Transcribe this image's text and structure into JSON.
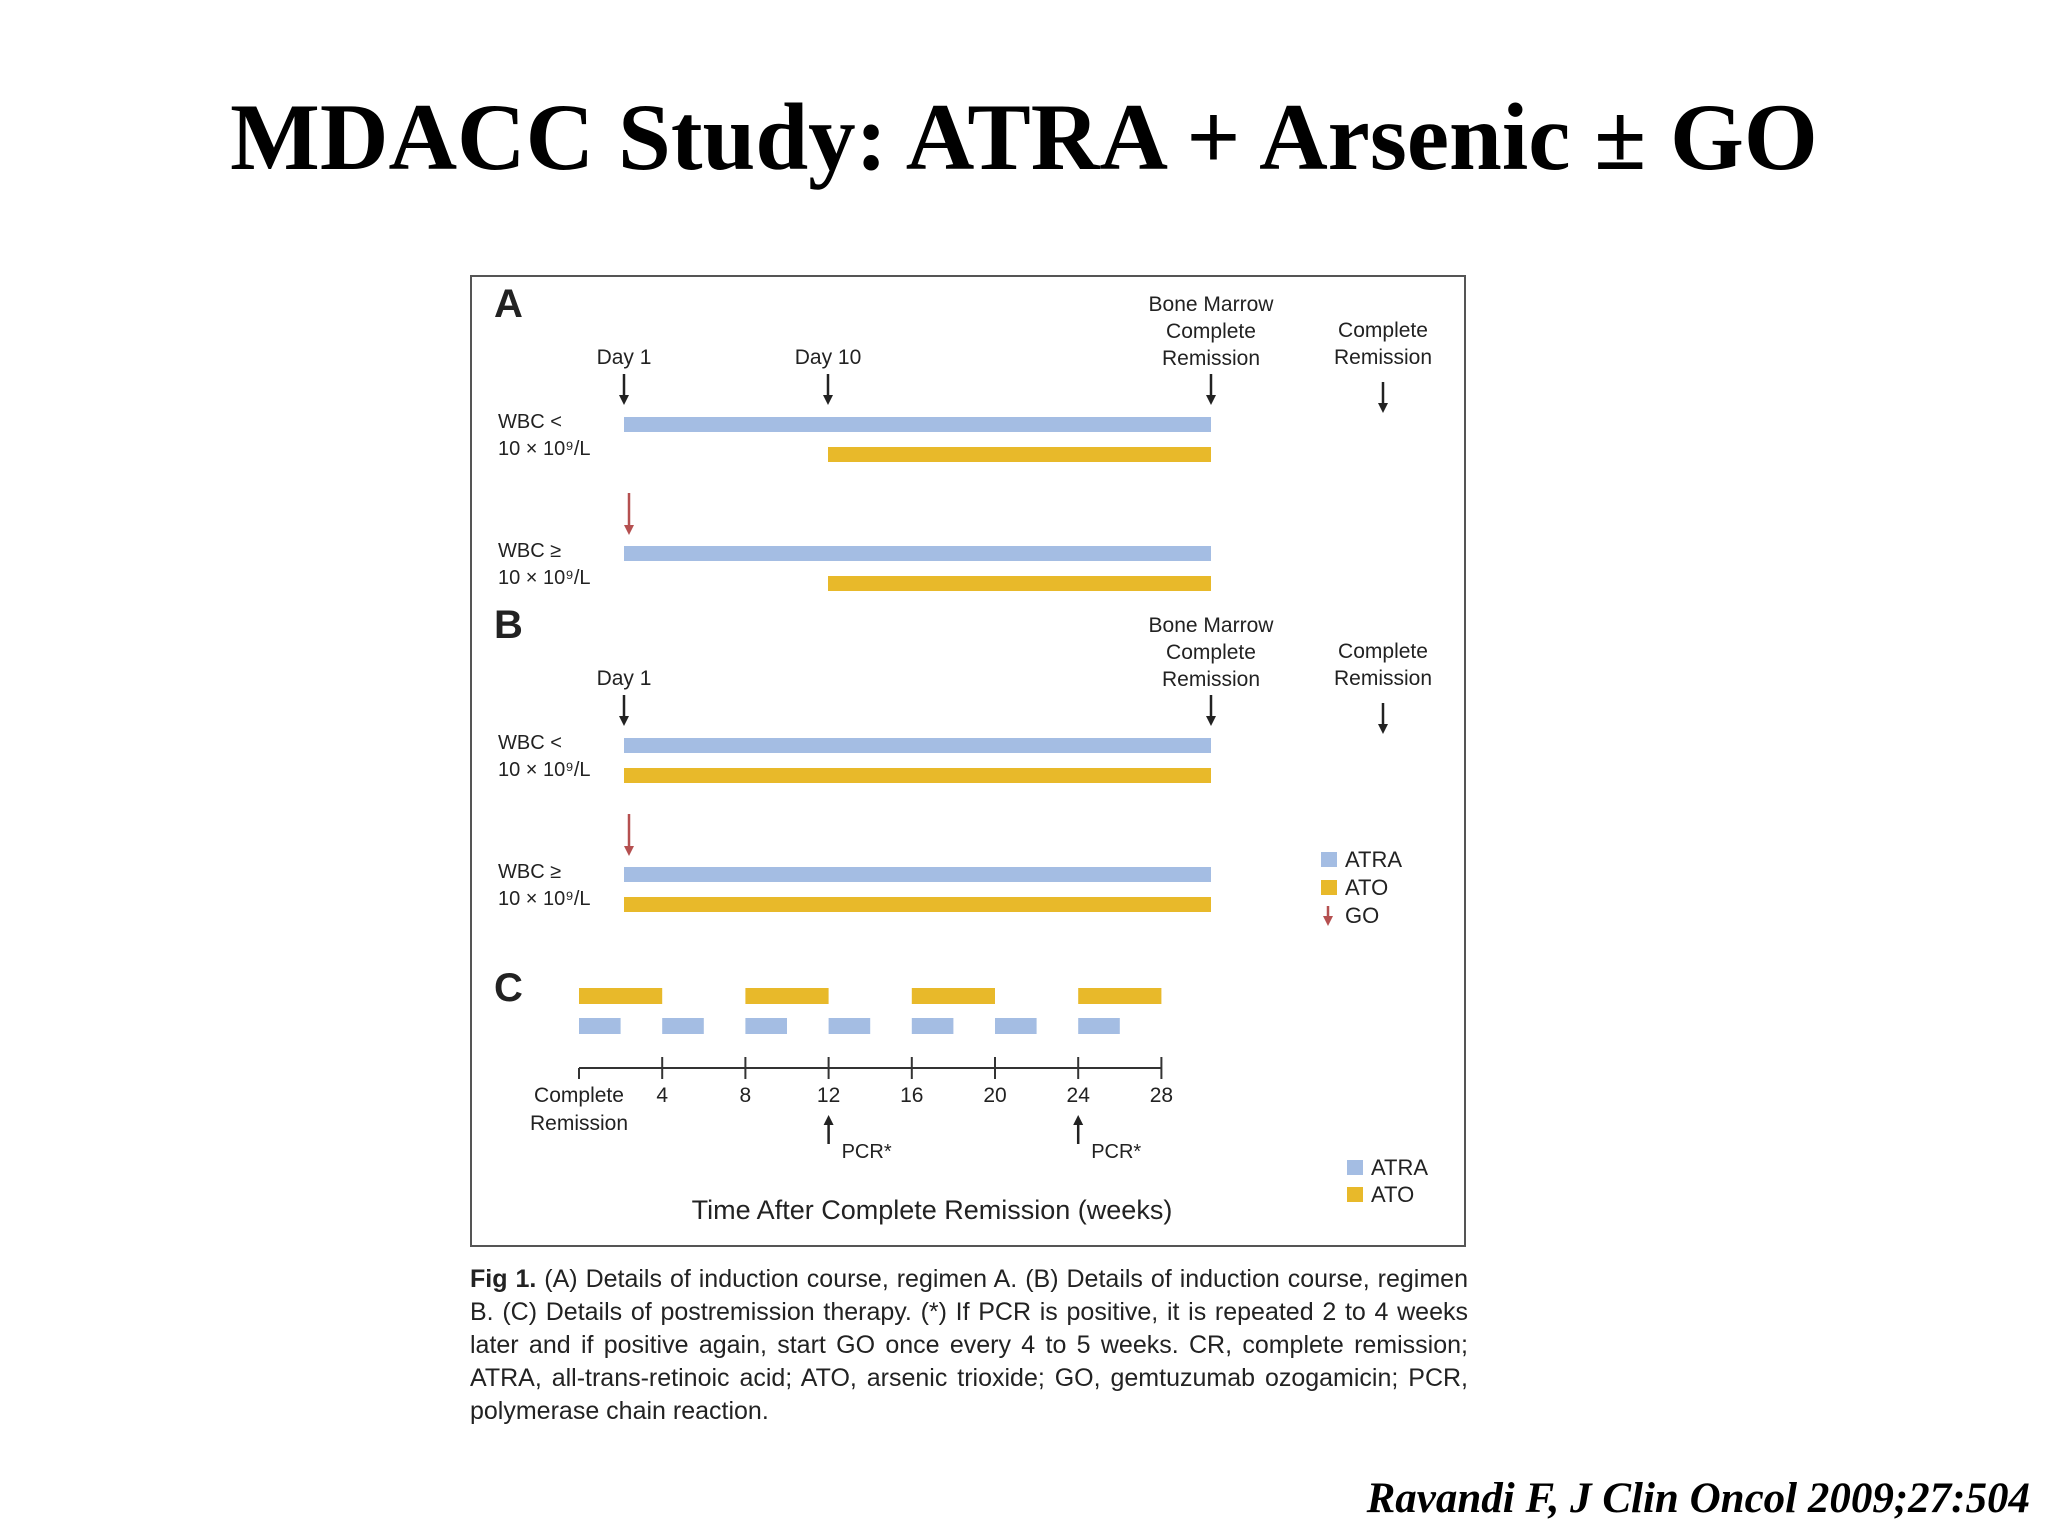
{
  "slide": {
    "title": "MDACC Study: ATRA + Arsenic ± GO",
    "citation": "Ravandi F, J Clin Oncol 2009;27:504"
  },
  "colors": {
    "atra": "#a4bde3",
    "ato": "#e8b92a",
    "go": "#b55050",
    "arrow": "#222222"
  },
  "figure": {
    "panel_a": {
      "letter": "A",
      "day1_label": "Day 1",
      "day10_label": "Day 10",
      "bmcr_label": [
        "Bone Marrow",
        "Complete",
        "Remission"
      ],
      "cr_label": [
        "Complete",
        "Remission"
      ],
      "rows": [
        {
          "label": [
            "WBC <",
            "10 × 10⁹/L"
          ],
          "go": false,
          "atra_start_day": 1,
          "ato_start_day": 10
        },
        {
          "label": [
            "WBC ≥",
            "10 × 10⁹/L"
          ],
          "go": true,
          "atra_start_day": 1,
          "ato_start_day": 10
        }
      ]
    },
    "panel_b": {
      "letter": "B",
      "day1_label": "Day 1",
      "bmcr_label": [
        "Bone Marrow",
        "Complete",
        "Remission"
      ],
      "cr_label": [
        "Complete",
        "Remission"
      ],
      "rows": [
        {
          "label": [
            "WBC <",
            "10 × 10⁹/L"
          ],
          "go": false,
          "atra_start_day": 1,
          "ato_start_day": 1
        },
        {
          "label": [
            "WBC ≥",
            "10 × 10⁹/L"
          ],
          "go": true,
          "atra_start_day": 1,
          "ato_start_day": 1
        }
      ],
      "legend": [
        {
          "key": "atra",
          "label": "ATRA"
        },
        {
          "key": "ato",
          "label": "ATO"
        },
        {
          "key": "go",
          "label": "GO"
        }
      ]
    },
    "panel_c": {
      "letter": "C",
      "ato_blocks_weeks": [
        [
          0,
          4
        ],
        [
          8,
          12
        ],
        [
          16,
          20
        ],
        [
          24,
          28
        ]
      ],
      "atra_blocks_weeks": [
        [
          0,
          2
        ],
        [
          4,
          6
        ],
        [
          8,
          10
        ],
        [
          12,
          14
        ],
        [
          16,
          18
        ],
        [
          20,
          22
        ],
        [
          24,
          26
        ]
      ],
      "axis_ticks": [
        4,
        8,
        12,
        16,
        20,
        24,
        28
      ],
      "axis_start_label": [
        "Complete",
        "Remission"
      ],
      "pcr_weeks": [
        12,
        24
      ],
      "pcr_label": "PCR*",
      "xlabel": "Time After Complete Remission (weeks)",
      "legend": [
        {
          "key": "atra",
          "label": "ATRA"
        },
        {
          "key": "ato",
          "label": "ATO"
        }
      ]
    },
    "caption": {
      "label": "Fig 1.",
      "text": "(A) Details of induction course, regimen A. (B) Details of induction course, regimen B. (C) Details of postremission therapy. (*) If PCR is positive, it is repeated 2 to 4 weeks later and if positive again, start GO once every 4 to 5 weeks. CR, complete remission; ATRA, all-trans-retinoic acid; ATO, arsenic trioxide; GO, gemtuzumab ozogamicin; PCR, polymerase chain reaction."
    }
  }
}
